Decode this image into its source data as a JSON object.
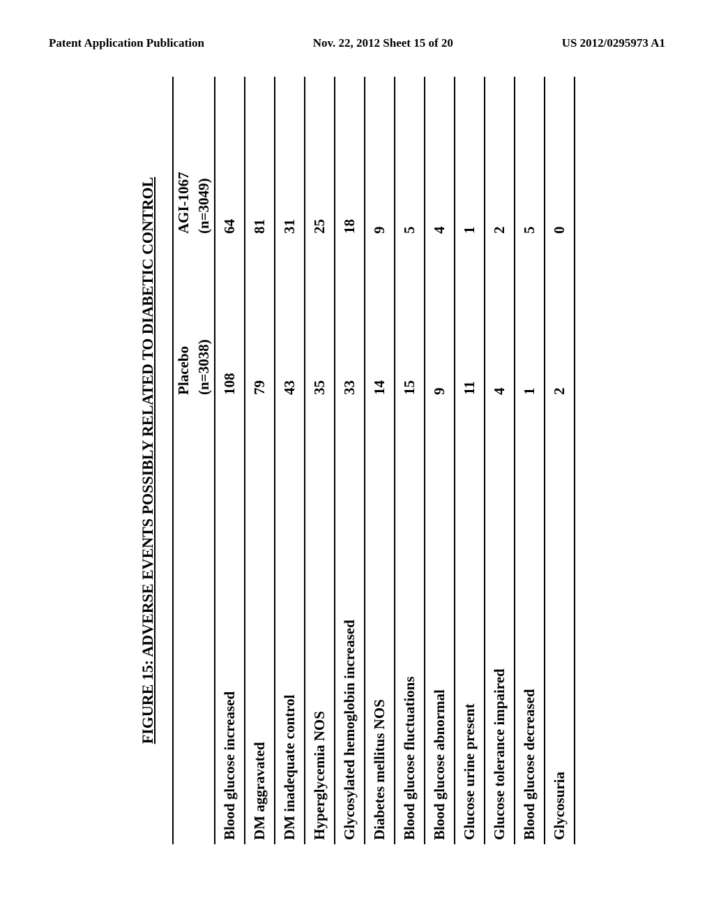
{
  "header": {
    "left": "Patent Application Publication",
    "center": "Nov. 22, 2012  Sheet 15 of 20",
    "right": "US 2012/0295973 A1"
  },
  "figure": {
    "title": "FIGURE 15: ADVERSE EVENTS POSSIBLY RELATED TO DIABETIC CONTROL"
  },
  "table": {
    "columns": {
      "event": "",
      "placebo_label": "Placebo",
      "placebo_n": "(n=3038)",
      "agi_label": "AGI-1067",
      "agi_n": "(n=3049)"
    },
    "rows": [
      {
        "event": "Blood glucose increased",
        "placebo": "108",
        "agi": "64"
      },
      {
        "event": "DM aggravated",
        "placebo": "79",
        "agi": "81"
      },
      {
        "event": "DM inadequate control",
        "placebo": "43",
        "agi": "31"
      },
      {
        "event": "Hyperglycemia NOS",
        "placebo": "35",
        "agi": "25"
      },
      {
        "event": "Glycosylated hemoglobin increased",
        "placebo": "33",
        "agi": "18"
      },
      {
        "event": "Diabetes mellitus NOS",
        "placebo": "14",
        "agi": "9"
      },
      {
        "event": "Blood glucose fluctuations",
        "placebo": "15",
        "agi": "5"
      },
      {
        "event": "Blood glucose abnormal",
        "placebo": "9",
        "agi": "4"
      },
      {
        "event": "Glucose urine present",
        "placebo": "11",
        "agi": "1"
      },
      {
        "event": "Glucose tolerance impaired",
        "placebo": "4",
        "agi": "2"
      },
      {
        "event": "Blood glucose decreased",
        "placebo": "1",
        "agi": "5"
      },
      {
        "event": "Glycosuria",
        "placebo": "2",
        "agi": "0"
      }
    ],
    "styling": {
      "border_color": "#000000",
      "border_width": 2,
      "font_weight": "bold",
      "font_size": 21,
      "background_color": "#ffffff",
      "text_color": "#000000"
    }
  }
}
